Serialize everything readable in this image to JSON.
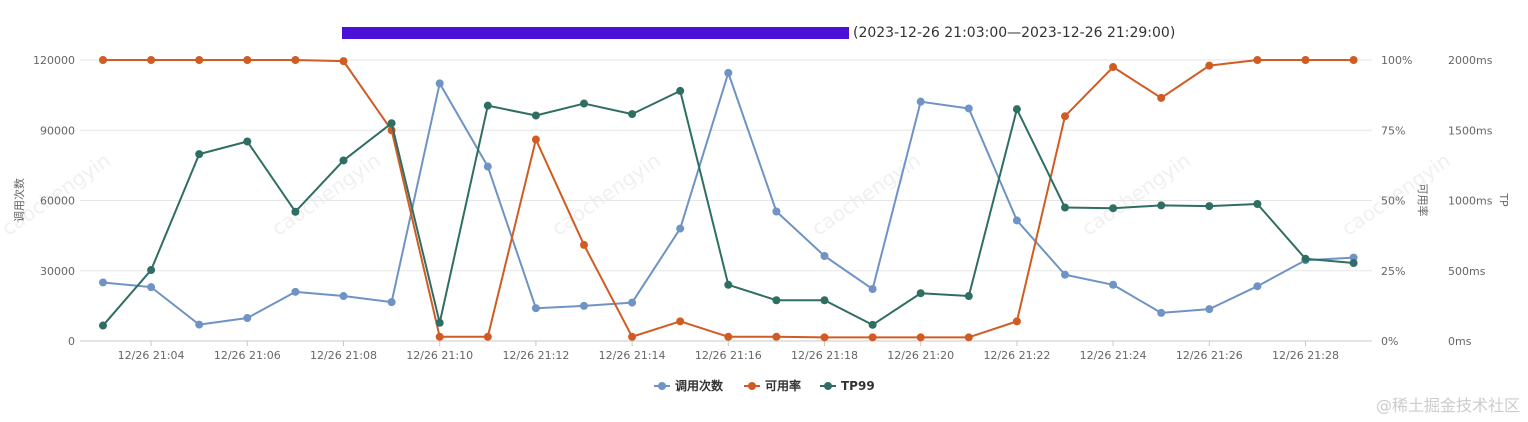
{
  "title": {
    "range_text": "(2023-12-26 21:03:00—2023-12-26 21:29:00)",
    "redaction_color": "#4a10d6"
  },
  "watermark_text": "caochengyin",
  "site_mark": "@稀土掘金技术社区",
  "chart_data": {
    "type": "line",
    "x": [
      "12/26 21:03",
      "12/26 21:04",
      "12/26 21:05",
      "12/26 21:06",
      "12/26 21:07",
      "12/26 21:08",
      "12/26 21:09",
      "12/26 21:10",
      "12/26 21:11",
      "12/26 21:12",
      "12/26 21:13",
      "12/26 21:14",
      "12/26 21:15",
      "12/26 21:16",
      "12/26 21:17",
      "12/26 21:18",
      "12/26 21:19",
      "12/26 21:20",
      "12/26 21:21",
      "12/26 21:22",
      "12/26 21:23",
      "12/26 21:24",
      "12/26 21:25",
      "12/26 21:26",
      "12/26 21:27",
      "12/26 21:28",
      "12/26 21:29"
    ],
    "x_tick_labels": [
      "12/26 21:04",
      "12/26 21:06",
      "12/26 21:08",
      "12/26 21:10",
      "12/26 21:12",
      "12/26 21:14",
      "12/26 21:16",
      "12/26 21:18",
      "12/26 21:20",
      "12/26 21:22",
      "12/26 21:24",
      "12/26 21:26",
      "12/26 21:28"
    ],
    "axes": {
      "left": {
        "label": "调用次数",
        "range": [
          0,
          120000
        ],
        "ticks": [
          "0",
          "30000",
          "60000",
          "90000",
          "120000"
        ]
      },
      "right1": {
        "label": "可用率",
        "range": [
          0,
          100
        ],
        "ticks": [
          "0%",
          "25%",
          "50%",
          "75%",
          "100%"
        ]
      },
      "right2": {
        "label": "TP",
        "range": [
          0,
          2000
        ],
        "ticks": [
          "0ms",
          "500ms",
          "1000ms",
          "1500ms",
          "2000ms"
        ]
      }
    },
    "grid": true,
    "legend_position": "bottom",
    "series": [
      {
        "name": "调用次数",
        "axis": "left",
        "color": "#6e93c4",
        "values": [
          25000,
          23000,
          7000,
          9800,
          21000,
          19200,
          16600,
          110000,
          74500,
          14000,
          15000,
          16400,
          48000,
          114500,
          55300,
          36300,
          22200,
          102200,
          99300,
          51500,
          28300,
          24000,
          12000,
          13600,
          23400,
          34500,
          35600
        ]
      },
      {
        "name": "可用率",
        "axis": "right1",
        "color": "#d15c23",
        "values": [
          100,
          100,
          100,
          100,
          100,
          99.6,
          75,
          1.5,
          1.5,
          71.7,
          34.2,
          1.5,
          7,
          1.5,
          1.5,
          1.3,
          1.3,
          1.3,
          1.3,
          7,
          80,
          97.5,
          86.5,
          98,
          100,
          100,
          100
        ]
      },
      {
        "name": "TP99",
        "axis": "right2",
        "color": "#2f6e62",
        "values": [
          110,
          505,
          1330,
          1420,
          920,
          1285,
          1550,
          130,
          1675,
          1605,
          1690,
          1615,
          1780,
          400,
          290,
          290,
          115,
          340,
          320,
          1650,
          950,
          945,
          965,
          960,
          975,
          585,
          555
        ]
      }
    ]
  }
}
